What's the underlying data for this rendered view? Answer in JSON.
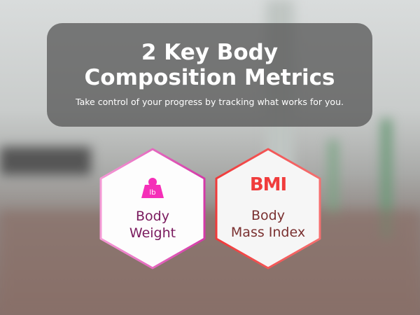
{
  "banner": {
    "title_line1": "2 Key Body",
    "title_line2": "Composition Metrics",
    "subtitle": "Take control of your progress by tracking what works for you."
  },
  "cards": [
    {
      "icon": "weight-icon",
      "icon_text": "lb",
      "line1": "Body",
      "line2": "Weight",
      "color": "#e040b0",
      "text_color": "#7a1a5e"
    },
    {
      "icon": "bmi-icon",
      "icon_text": "BMI",
      "line1": "Body",
      "line2": "Mass Index",
      "color": "#f04848",
      "text_color": "#7a3030"
    }
  ]
}
